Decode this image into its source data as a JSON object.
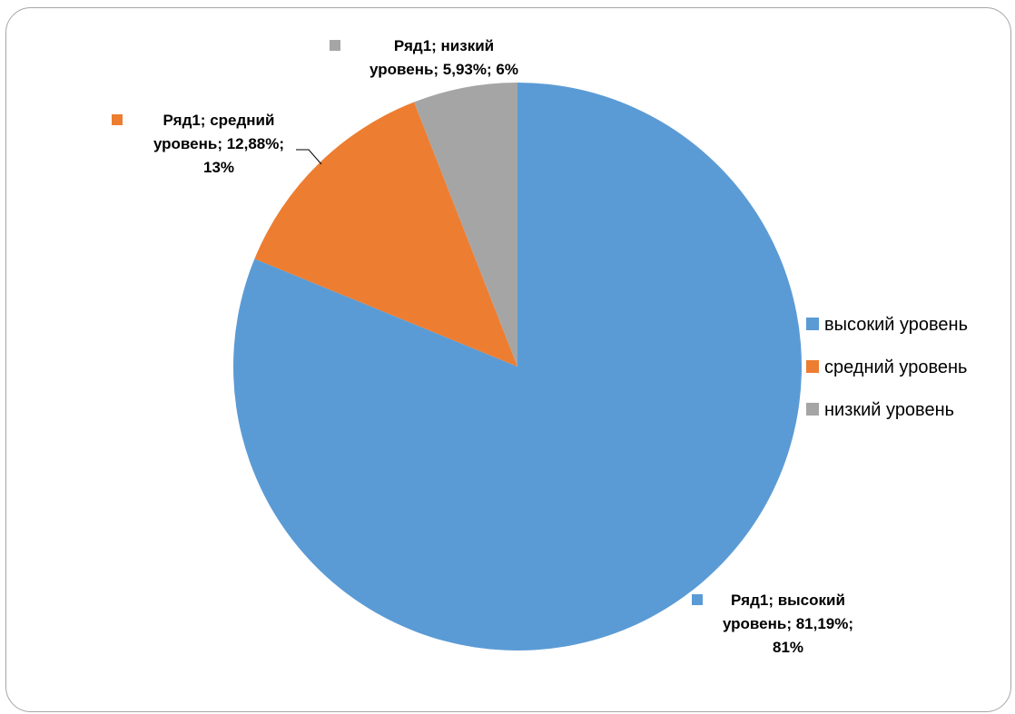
{
  "chart_data": {
    "type": "pie",
    "series_name": "Ряд1",
    "categories": [
      "высокий уровень",
      "средний уровень",
      "низкий уровень"
    ],
    "values": [
      81.19,
      12.88,
      5.93
    ],
    "colors": [
      "#5B9BD5",
      "#ED7D31",
      "#A5A5A5"
    ],
    "start_angle_deg": 0,
    "direction": "clockwise",
    "legend": {
      "position": "right",
      "items": [
        "высокий уровень",
        "средний уровень",
        "низкий уровень"
      ]
    },
    "data_labels": [
      {
        "lines": [
          "Ряд1; высокий",
          "уровень; 81,19%;",
          "81%"
        ]
      },
      {
        "lines": [
          "Ряд1; средний",
          "уровень; 12,88%;",
          "13%"
        ]
      },
      {
        "lines": [
          "Ряд1; низкий",
          "уровень; 5,93%; 6%"
        ]
      }
    ]
  }
}
